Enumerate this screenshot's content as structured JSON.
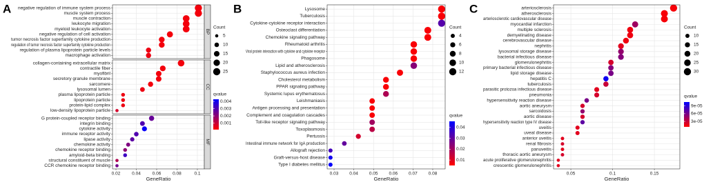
{
  "chart_data": [
    {
      "type": "dot",
      "panel": "A",
      "x_label": "GeneRatio",
      "xlim": [
        0.0166,
        0.1068
      ],
      "xticks": [
        0.02,
        0.04,
        0.06,
        0.08,
        0.1
      ],
      "groups": [
        {
          "name": "BP",
          "categories": [
            "negative regulation of immune system process",
            "muscle system process",
            "muscle contraction",
            "leukocyte migration",
            "myeloid leukocyte activation",
            "negative regulation of cell activation",
            "tumor necrosis factor superfamily cytokine production",
            "regulation of tumor necrosis factor superfamily cytokine production",
            "regulation of plasma lipoprotein particle levels",
            "macrophage activation"
          ],
          "values": [
            0.101,
            0.101,
            0.089,
            0.089,
            0.089,
            0.073,
            0.065,
            0.065,
            0.052,
            0.052
          ],
          "counts": [
            25,
            25,
            22,
            22,
            22,
            18,
            16,
            16,
            13,
            13
          ],
          "qvalues": [
            0.0003,
            0.0003,
            0.0003,
            0.0003,
            0.0003,
            0.0003,
            0.0003,
            0.0003,
            0.0004,
            0.0004
          ]
        },
        {
          "name": "CC",
          "categories": [
            "collagen-containing extracellular matrix",
            "contractile fiber",
            "myofibril",
            "secretory granule membrane",
            "sarcomere",
            "lysosomal lumen",
            "plasma lipoprotein particle",
            "lipoprotein particle",
            "protein-lipid complex",
            "low-density lipoprotein particle"
          ],
          "values": [
            0.084,
            0.066,
            0.062,
            0.062,
            0.054,
            0.046,
            0.027,
            0.027,
            0.027,
            0.021
          ],
          "counts": [
            21,
            16,
            15,
            15,
            13,
            11,
            7,
            7,
            7,
            5
          ],
          "qvalues": [
            0.0003,
            0.0003,
            0.0003,
            0.0003,
            0.0003,
            0.0004,
            0.0004,
            0.0004,
            0.0004,
            0.0008
          ]
        },
        {
          "name": "MF",
          "categories": [
            "G protein-coupled receptor binding",
            "integrin binding",
            "cytokine activity",
            "immune receptor activity",
            "lipase activity",
            "chemokine activity",
            "chemokine receptor binding",
            "amyloid-beta binding",
            "structural constituent of muscle",
            "CCR chemokine receptor binding"
          ],
          "values": [
            0.055,
            0.046,
            0.048,
            0.04,
            0.036,
            0.032,
            0.029,
            0.029,
            0.021,
            0.021
          ],
          "counts": [
            13,
            11,
            12,
            10,
            9,
            8,
            7,
            7,
            5,
            5
          ],
          "qvalues": [
            0.0026,
            0.003,
            0.0042,
            0.003,
            0.0028,
            0.0022,
            0.002,
            0.0033,
            0.0014,
            0.0024
          ]
        }
      ],
      "size_legend": {
        "title": "Count",
        "values": [
          5,
          10,
          15,
          20,
          25
        ]
      },
      "color_legend": {
        "title": "qvalue",
        "lim": [
          0.0001,
          0.0043
        ],
        "ticks": [
          0.001,
          0.002,
          0.003,
          0.004
        ],
        "low_color": "#ff0000",
        "high_color": "#0000ff"
      }
    },
    {
      "type": "dot",
      "panel": "B",
      "x_label": "GeneRatio",
      "xlim": [
        0.0265,
        0.0863
      ],
      "xticks": [
        0.03,
        0.04,
        0.05,
        0.06,
        0.07,
        0.08
      ],
      "groups": [
        {
          "categories": [
            "Lysosome",
            "Tuberculosis",
            "Cytokine-cytokine receptor interaction",
            "Osteoclast differentiation",
            "Chemokine signaling pathway",
            "Rheumatoid arthritis",
            "Viral protein interaction with cytokine and cytokine receptor",
            "Phagosome",
            "Lipid and atherosclerosis",
            "Staphylococcus aureus infection",
            "Cholesterol metabolism",
            "PPAR signaling pathway",
            "Systemic lupus erythematosus",
            "Leishmaniasis",
            "Antigen processing and presentation",
            "Complement and coagulation cascades",
            "Toll-like receptor signaling pathway",
            "Toxoplasmosis",
            "Pertussis",
            "Intestinal immune network for IgA production",
            "Allograft rejection",
            "Graft-versus-host disease",
            "Type I diabetes mellitus"
          ],
          "values": [
            0.0845,
            0.0845,
            0.0845,
            0.0775,
            0.0775,
            0.0704,
            0.0704,
            0.0704,
            0.0704,
            0.0634,
            0.0563,
            0.0563,
            0.0563,
            0.0493,
            0.0493,
            0.0493,
            0.0493,
            0.0493,
            0.0423,
            0.0352,
            0.0282,
            0.0282,
            0.0282
          ],
          "counts": [
            12,
            12,
            12,
            11,
            11,
            10,
            10,
            10,
            10,
            9,
            8,
            8,
            8,
            7,
            7,
            7,
            7,
            7,
            6,
            5,
            4,
            4,
            4
          ],
          "qvalues": [
            0.006,
            0.006,
            0.032,
            0.006,
            0.006,
            0.006,
            0.006,
            0.006,
            0.024,
            0.006,
            0.006,
            0.006,
            0.018,
            0.006,
            0.006,
            0.006,
            0.02,
            0.016,
            0.012,
            0.03,
            0.035,
            0.043,
            0.045
          ]
        }
      ],
      "size_legend": {
        "title": "Count",
        "values": [
          4,
          6,
          8,
          10,
          12
        ]
      },
      "color_legend": {
        "title": "qvalue",
        "lim": [
          0.005,
          0.0456
        ],
        "ticks": [
          0.01,
          0.02,
          0.03,
          0.04
        ],
        "low_color": "#ff0000",
        "high_color": "#0000ff"
      }
    },
    {
      "type": "dot",
      "panel": "C",
      "x_label": "GeneRatio",
      "xlim": [
        0.0293,
        0.1805
      ],
      "xticks": [
        0.05,
        0.1,
        0.15
      ],
      "groups": [
        {
          "categories": [
            "arteriosclerosis",
            "atherosclerosis",
            "arteriosclerotic cardiovascular disease",
            "myocardial infarction",
            "multiple sclerosis",
            "demyelinating disease",
            "cerebrovascular disease",
            "nephritis",
            "lysosomal storage disease",
            "bacterial infectious disease",
            "glomerulonephritis",
            "primary bacterial infectious disease",
            "lipid storage disease",
            "hepatitis C",
            "tuberculosis",
            "parasitic protozoa infectious disease",
            "pneumonia",
            "hypersensitivity reaction disease",
            "aortic aneurysm",
            "sarcoidosis",
            "aortic disease",
            "hypersensitivity reaction type IV disease",
            "uveitis",
            "uveal disease",
            "anterior uveitis",
            "renal fibrosis",
            "panuveitis",
            "thoracic aortic aneurysm",
            "acute proliferative glomerulonephritis",
            "crescentic glomerulonephritis"
          ],
          "values": [
            0.173,
            0.162,
            0.162,
            0.127,
            0.121,
            0.121,
            0.116,
            0.11,
            0.11,
            0.11,
            0.098,
            0.098,
            0.098,
            0.092,
            0.092,
            0.081,
            0.081,
            0.069,
            0.064,
            0.064,
            0.064,
            0.064,
            0.058,
            0.058,
            0.04,
            0.04,
            0.04,
            0.04,
            0.035,
            0.035
          ],
          "counts": [
            30,
            28,
            28,
            22,
            21,
            21,
            20,
            19,
            19,
            19,
            17,
            17,
            17,
            16,
            16,
            14,
            14,
            12,
            11,
            11,
            11,
            11,
            10,
            10,
            7,
            7,
            7,
            7,
            6,
            6
          ],
          "qvalues": [
            1.2e-05,
            1.2e-05,
            1.2e-05,
            4.5e-05,
            1.5e-05,
            1.5e-05,
            1.5e-05,
            2e-05,
            5e-05,
            5.5e-05,
            2.5e-05,
            5.5e-05,
            6e-05,
            0.0001,
            3e-05,
            2e-05,
            2.5e-05,
            6e-05,
            2.5e-05,
            5e-05,
            2.5e-05,
            7e-05,
            2e-05,
            2e-05,
            2e-05,
            2.5e-05,
            2e-05,
            2.5e-05,
            2e-05,
            2e-05
          ]
        }
      ],
      "size_legend": {
        "title": "Count",
        "values": [
          10,
          15,
          20,
          25,
          30
        ]
      },
      "color_legend": {
        "title": "qvalue",
        "lim": [
          9e-06,
          0.000105
        ],
        "ticks": [
          {
            "value": 9e-05,
            "label": "9e-05"
          },
          {
            "value": 6e-05,
            "label": "6e-05"
          },
          {
            "value": 3e-05,
            "label": "3e-05"
          }
        ],
        "low_color": "#ff0000",
        "high_color": "#0000ff"
      }
    }
  ]
}
